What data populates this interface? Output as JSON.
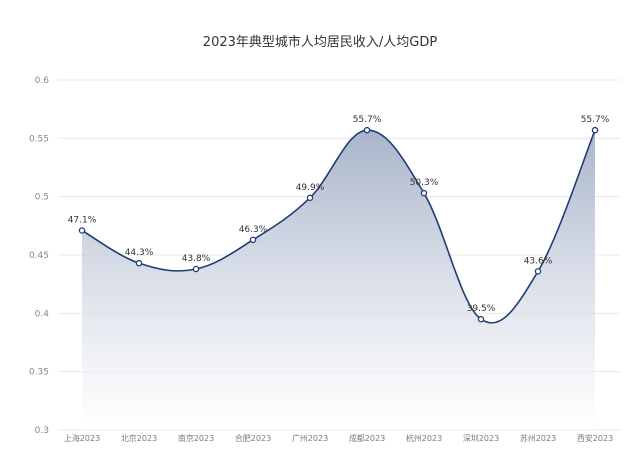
{
  "chart_data": {
    "type": "area",
    "title": "2023年典型城市人均居民收入/人均GDP",
    "categories": [
      "上海2023",
      "北京2023",
      "南京2023",
      "合肥2023",
      "广州2023",
      "成都2023",
      "杭州2023",
      "深圳2023",
      "苏州2023",
      "西安2023"
    ],
    "values": [
      0.471,
      0.443,
      0.438,
      0.463,
      0.499,
      0.557,
      0.503,
      0.395,
      0.436,
      0.557
    ],
    "data_labels": [
      "47.1%",
      "44.3%",
      "43.8%",
      "46.3%",
      "49.9%",
      "55.7%",
      "50.3%",
      "39.5%",
      "43.6%",
      "55.7%"
    ],
    "y_ticks": [
      "0.3",
      "0.35",
      "0.4",
      "0.45",
      "0.5",
      "0.55",
      "0.6"
    ],
    "ylim": [
      0.3,
      0.6
    ],
    "xlabel": "",
    "ylabel": "",
    "grid": true,
    "colors": {
      "line": "#1f3d73",
      "fill_top": "#9aa8c2",
      "fill_bottom": "#ffffff",
      "marker_fill": "#ffffff"
    }
  }
}
